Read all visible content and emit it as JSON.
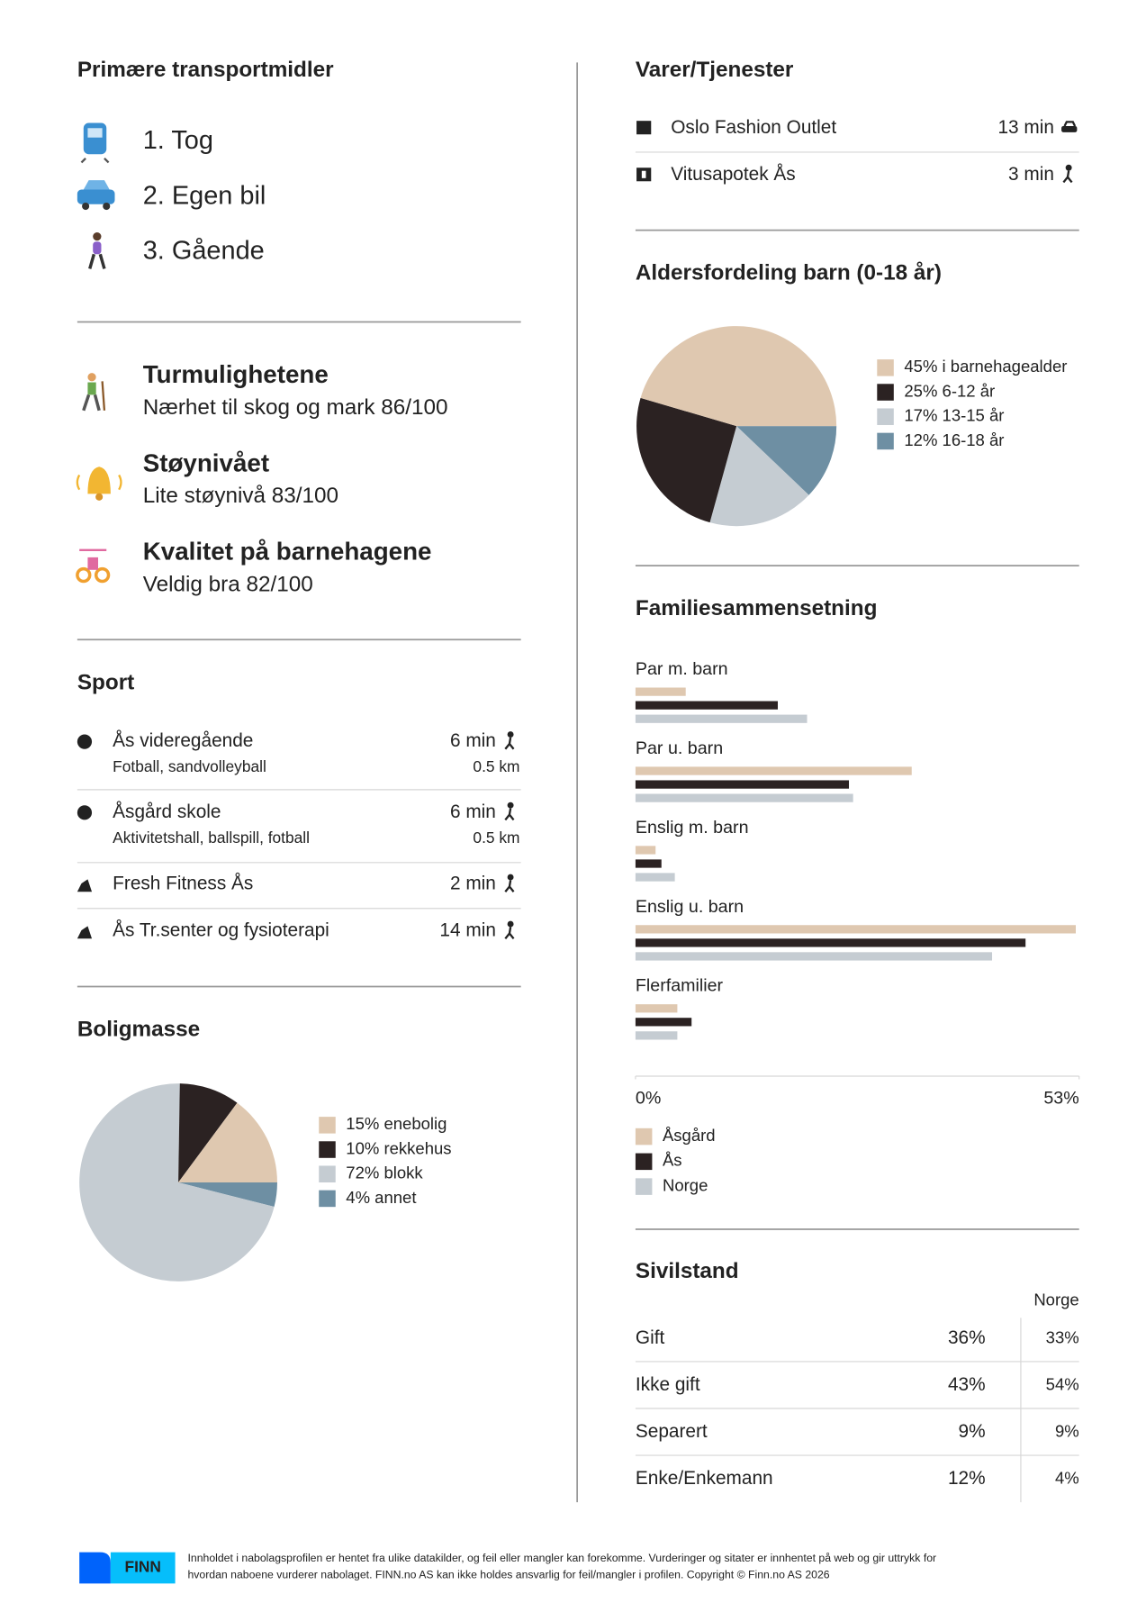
{
  "transport": {
    "title": "Primære transportmidler",
    "items": [
      "1. Tog",
      "2. Egen bil",
      "3. Gående"
    ]
  },
  "ratings": [
    {
      "title": "Turmulighetene",
      "text": "Nærhet til skog og mark 86/100"
    },
    {
      "title": "Støynivået",
      "text": "Lite støynivå 83/100"
    },
    {
      "title": "Kvalitet på barnehagene",
      "text": "Veldig bra 82/100"
    }
  ],
  "sport": {
    "title": "Sport",
    "rows": [
      {
        "name": "Ås videregående",
        "sub": "Fotball, sandvolleyball",
        "time": "6 min",
        "dist": "0.5 km"
      },
      {
        "name": "Åsgård skole",
        "sub": "Aktivitetshall, ballspill, fotball",
        "time": "6 min",
        "dist": "0.5 km"
      },
      {
        "name": "Fresh Fitness Ås",
        "time": "2 min"
      },
      {
        "name": "Ås Tr.senter og fysioterapi",
        "time": "14 min"
      }
    ]
  },
  "boligmasse": {
    "type": "pie",
    "title": "Boligmasse",
    "categories": [
      "15% enebolig",
      "10% rekkehus",
      "72% blokk",
      "4% annet"
    ],
    "values": [
      15,
      10,
      72,
      4
    ],
    "colors": [
      "#dfc8b0",
      "#2b2222",
      "#c5ccd2",
      "#6e8fa3"
    ]
  },
  "varer": {
    "title": "Varer/Tjenester",
    "rows": [
      {
        "name": "Oslo Fashion Outlet",
        "time": "13 min"
      },
      {
        "name": "Vitusapotek Ås",
        "time": "3 min"
      }
    ]
  },
  "alder": {
    "type": "pie",
    "title": "Aldersfordeling barn (0-18 år)",
    "categories": [
      "45% i barnehagealder",
      "25% 6-12 år",
      "17% 13-15 år",
      "12% 16-18 år"
    ],
    "values": [
      45,
      25,
      17,
      12
    ],
    "colors": [
      "#dfc8b0",
      "#2b2222",
      "#c5ccd2",
      "#6e8fa3"
    ]
  },
  "familie": {
    "type": "bar",
    "orientation": "horizontal",
    "title": "Familiesammensetning",
    "categories": [
      "Par m. barn",
      "Par u. barn",
      "Enslig m. barn",
      "Enslig u. barn",
      "Flerfamilier"
    ],
    "series": [
      {
        "name": "Åsgård",
        "color": "#dfc8b0",
        "values": [
          6,
          33,
          2.4,
          52.6,
          5
        ]
      },
      {
        "name": "Ås",
        "color": "#2b2222",
        "values": [
          17,
          25.5,
          3.1,
          46.6,
          6.7
        ]
      },
      {
        "name": "Norge",
        "color": "#c5ccd2",
        "values": [
          20.5,
          26,
          4.7,
          42.6,
          5
        ]
      }
    ],
    "xlim": [
      0,
      53
    ],
    "xticks": [
      {
        "value": 0,
        "label": "0%"
      },
      {
        "value": 53,
        "label": "53%"
      }
    ]
  },
  "sivilstand": {
    "title": "Sivilstand",
    "compare_header": "Norge",
    "rows": [
      [
        "Gift",
        "36%",
        "33%"
      ],
      [
        "Ikke gift",
        "43%",
        "54%"
      ],
      [
        "Separert",
        "9%",
        "9%"
      ],
      [
        "Enke/Enkemann",
        "12%",
        "4%"
      ]
    ]
  },
  "footer": {
    "logo": "FINN",
    "lines": [
      "Innholdet i nabolagsprofilen er hentet fra ulike datakilder, og feil eller mangler kan forekomme. Vurderinger og sitater er innhentet på web og gir uttrykk for",
      "hvordan naboene vurderer nabolaget. FINN.no AS kan ikke holdes ansvarlig for feil/mangler i profilen. Copyright © Finn.no AS 2026"
    ]
  }
}
